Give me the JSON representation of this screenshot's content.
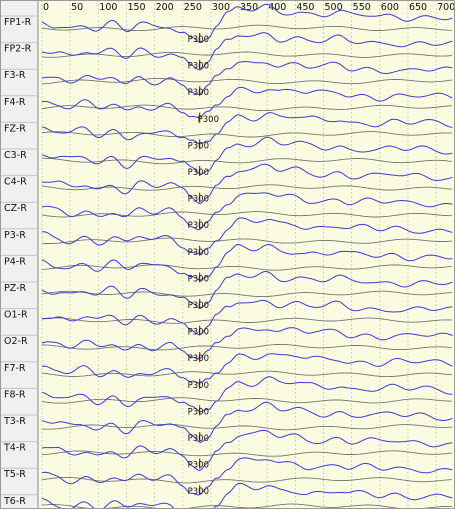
{
  "chart_data": {
    "type": "line",
    "x_ticks": [
      0,
      50,
      100,
      150,
      200,
      250,
      300,
      350,
      400,
      450,
      500,
      550,
      600,
      650,
      700
    ],
    "xlim": [
      0,
      730
    ],
    "grid": true,
    "channels": [
      "FP1-R",
      "FP2-R",
      "F3-R",
      "F4-R",
      "FZ-R",
      "C3-R",
      "C4-R",
      "CZ-R",
      "P3-R",
      "P4-R",
      "PZ-R",
      "O1-R",
      "O2-R",
      "F7-R",
      "F8-R",
      "T3-R",
      "T4-R",
      "T5-R",
      "T6-R"
    ],
    "marker": {
      "label": "P300",
      "latency": 280
    },
    "trace_shape": {
      "x": [
        0,
        25,
        50,
        75,
        100,
        125,
        150,
        175,
        200,
        225,
        250,
        265,
        280,
        295,
        310,
        330,
        350,
        375,
        400,
        425,
        450,
        475,
        500,
        525,
        550,
        575,
        600,
        625,
        650,
        675,
        700,
        730
      ],
      "y": [
        0,
        0.15,
        0.3,
        0.1,
        0.4,
        0.1,
        0.5,
        0.1,
        0.3,
        0.15,
        0.5,
        0.8,
        1,
        0.7,
        0.2,
        -0.35,
        -0.7,
        -0.6,
        -0.8,
        -0.55,
        -0.6,
        -0.45,
        -0.4,
        -0.5,
        -0.3,
        -0.35,
        -0.25,
        -0.35,
        -0.25,
        -0.3,
        -0.25,
        -0.2
      ]
    },
    "colors": {
      "blue_trace": "#3b3bd6",
      "gray_trace": "#6e7a70",
      "background": "#fbfbe1",
      "grid": "#c9c9a8",
      "marker": "#dd1111"
    }
  }
}
